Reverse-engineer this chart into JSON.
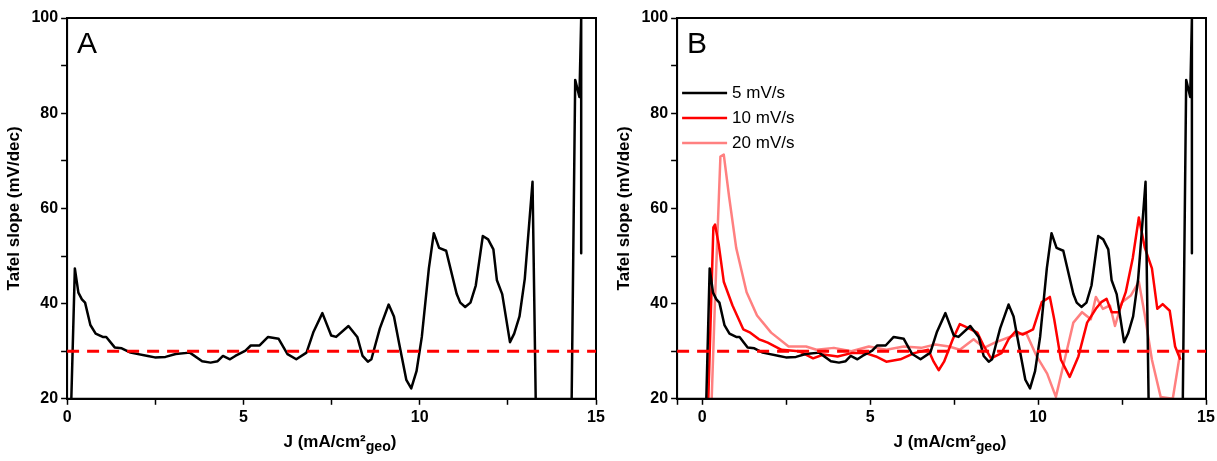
{
  "chart_data": [
    {
      "type": "line",
      "xlabel": "J (mA/cm²$_{geo}$)",
      "ylabel": "Tafel slope (mV/dec)",
      "annotations": [
        "A"
      ],
      "xlim": [
        0,
        15
      ],
      "ylim": [
        20,
        100
      ],
      "xticks": [
        0,
        {
          "value": 2.5,
          "label": null
        },
        5,
        {
          "value": 7.5,
          "label": null
        },
        10,
        {
          "value": 12.5,
          "label": null
        },
        15
      ],
      "yticks": [
        20,
        {
          "value": 30,
          "label": null
        },
        40,
        {
          "value": 50,
          "label": null
        },
        60,
        {
          "value": 70,
          "label": null
        },
        80,
        {
          "value": 90,
          "label": null
        },
        100
      ],
      "grid": false,
      "legend": false,
      "marker": "none",
      "line_style": "solid",
      "ref_lines": [
        {
          "axis": "y",
          "value": 30,
          "color": "#ff0000",
          "line_style": "dashed"
        }
      ],
      "series": [
        {
          "color": "#000000",
          "x": [
            0.12,
            0.22,
            0.32,
            0.42,
            0.51,
            0.66,
            0.81,
            1.01,
            1.11,
            1.35,
            1.55,
            1.8,
            2.29,
            2.49,
            2.79,
            3.08,
            3.48,
            3.83,
            4.07,
            4.27,
            4.42,
            4.62,
            4.77,
            5.06,
            5.21,
            5.46,
            5.7,
            6.0,
            6.25,
            6.5,
            6.79,
            6.99,
            7.24,
            7.49,
            7.63,
            7.98,
            8.23,
            8.38,
            8.53,
            8.63,
            8.87,
            9.12,
            9.27,
            9.42,
            9.62,
            9.76,
            9.91,
            10.06,
            10.26,
            10.4,
            10.55,
            10.75,
            11.05,
            11.15,
            11.29,
            11.44,
            11.59,
            11.79,
            11.94,
            12.09,
            12.19,
            12.34,
            12.56,
            12.68,
            12.83,
            12.98,
            13.2,
            13.29,
            null,
            14.31,
            14.41,
            14.53,
            14.58,
            14.58
          ],
          "values": [
            20,
            47.4,
            42.3,
            40.9,
            40.2,
            35.5,
            33.7,
            33,
            33,
            30.8,
            30.6,
            29.7,
            29,
            28.7,
            28.8,
            29.4,
            29.7,
            27.9,
            27.6,
            27.9,
            29,
            28.3,
            29,
            30.1,
            31.2,
            31.2,
            33,
            32.6,
            29.4,
            28.3,
            29.7,
            34.1,
            38,
            33.3,
            33,
            35.3,
            33,
            29,
            27.8,
            28.3,
            34.8,
            39.8,
            37.3,
            31.5,
            24,
            22.2,
            25.8,
            33,
            47.4,
            54.8,
            51.7,
            51.1,
            42,
            40.2,
            39.3,
            40.2,
            43.8,
            54.2,
            53.5,
            51.4,
            44.9,
            42,
            31.9,
            33.7,
            37.3,
            45.2,
            65.6,
            20,
            null,
            20,
            87,
            83.4,
            100,
            50.6
          ]
        }
      ]
    },
    {
      "type": "line",
      "xlabel": "J (mA/cm²$_{geo}$)",
      "ylabel": "Tafel slope (mV/dec)",
      "annotations": [
        "B"
      ],
      "xlim": [
        -0.75,
        15
      ],
      "ylim": [
        20,
        100
      ],
      "xticks": [
        {
          "value": -0.75,
          "label": null
        },
        0,
        {
          "value": 2.5,
          "label": null
        },
        5,
        {
          "value": 7.5,
          "label": null
        },
        10,
        {
          "value": 12.5,
          "label": null
        },
        15
      ],
      "yticks": [
        20,
        {
          "value": 30,
          "label": null
        },
        40,
        {
          "value": 50,
          "label": null
        },
        60,
        {
          "value": 70,
          "label": null
        },
        80,
        {
          "value": 90,
          "label": null
        },
        100
      ],
      "grid": false,
      "legend": "top left",
      "marker": "none",
      "line_style": "solid",
      "ref_lines": [
        {
          "axis": "y",
          "value": 30,
          "color": "#ff0000",
          "line_style": "dashed"
        }
      ],
      "series": [
        {
          "name": "5 mV/s",
          "color": "#000000",
          "x": [
            0.12,
            0.22,
            0.32,
            0.42,
            0.51,
            0.66,
            0.81,
            1.01,
            1.11,
            1.35,
            1.55,
            1.8,
            2.29,
            2.49,
            2.79,
            3.08,
            3.48,
            3.83,
            4.07,
            4.27,
            4.42,
            4.62,
            4.77,
            5.06,
            5.21,
            5.46,
            5.7,
            6.0,
            6.25,
            6.5,
            6.79,
            6.99,
            7.24,
            7.49,
            7.63,
            7.98,
            8.23,
            8.38,
            8.53,
            8.63,
            8.87,
            9.12,
            9.27,
            9.42,
            9.62,
            9.76,
            9.91,
            10.06,
            10.26,
            10.4,
            10.55,
            10.75,
            11.05,
            11.15,
            11.29,
            11.44,
            11.59,
            11.79,
            11.94,
            12.09,
            12.19,
            12.34,
            12.56,
            12.68,
            12.83,
            12.98,
            13.2,
            13.29,
            null,
            14.31,
            14.41,
            14.53,
            14.58,
            14.58
          ],
          "values": [
            20,
            47.4,
            42.3,
            40.9,
            40.2,
            35.5,
            33.7,
            33,
            33,
            30.8,
            30.6,
            29.7,
            29,
            28.7,
            28.8,
            29.4,
            29.7,
            27.9,
            27.6,
            27.9,
            29,
            28.3,
            29,
            30.1,
            31.2,
            31.2,
            33,
            32.6,
            29.4,
            28.3,
            29.7,
            34.1,
            38,
            33.3,
            33,
            35.3,
            33,
            29,
            27.8,
            28.3,
            34.8,
            39.8,
            37.3,
            31.5,
            24,
            22.2,
            25.8,
            33,
            47.4,
            54.8,
            51.7,
            51.1,
            42,
            40.2,
            39.3,
            40.2,
            43.8,
            54.2,
            53.5,
            51.4,
            44.9,
            42,
            31.9,
            33.7,
            37.3,
            45.2,
            65.6,
            20,
            null,
            20,
            87,
            83.4,
            100,
            50.6
          ]
        },
        {
          "name": "10 mV/s",
          "color": "#ff0000",
          "x": [
            0.18,
            0.33,
            0.38,
            0.49,
            0.64,
            0.9,
            1.22,
            1.43,
            1.69,
            1.95,
            2.36,
            2.88,
            3.3,
            3.61,
            4.03,
            4.44,
            4.86,
            5.17,
            5.48,
            5.9,
            6.31,
            6.73,
            6.89,
            7.04,
            7.2,
            7.46,
            7.67,
            7.88,
            8.19,
            8.39,
            8.6,
            8.91,
            9.12,
            9.33,
            9.54,
            9.85,
            10.11,
            10.35,
            10.48,
            10.68,
            10.94,
            11.2,
            11.46,
            11.72,
            11.88,
            12.04,
            12.19,
            12.4,
            12.61,
            12.82,
            13.0,
            13.18,
            13.39,
            13.55,
            13.71,
            13.92,
            14.08,
            14.24
          ],
          "values": [
            20,
            56,
            56.6,
            52.4,
            44.6,
            39.6,
            34.6,
            33.9,
            32.5,
            31.8,
            30.3,
            30,
            28.5,
            29.3,
            28.9,
            29.6,
            29.6,
            28.9,
            27.8,
            28.3,
            29.6,
            30.3,
            27.8,
            26,
            27.8,
            32.5,
            35.7,
            35,
            33.9,
            31,
            28.5,
            29.6,
            32.5,
            34.2,
            33.5,
            34.6,
            40.3,
            41.4,
            36.7,
            28.2,
            24.6,
            28.9,
            36,
            38.9,
            40.3,
            41,
            38.2,
            38.2,
            42.4,
            49.6,
            58.1,
            51.7,
            47.4,
            38.9,
            39.9,
            38.5,
            31,
            28.2
          ]
        },
        {
          "name": "20 mV/s",
          "color": "#ff8080",
          "x": [
            0.28,
            0.38,
            0.54,
            0.64,
            0.8,
            1.01,
            1.32,
            1.63,
            2.05,
            2.57,
            3.09,
            3.4,
            3.92,
            4.44,
            4.96,
            5.48,
            6.0,
            6.52,
            6.94,
            7.35,
            7.67,
            8.08,
            8.39,
            8.71,
            9.23,
            9.64,
            9.96,
            10.27,
            10.53,
            10.79,
            11.05,
            11.31,
            11.57,
            11.72,
            11.93,
            12.14,
            12.29,
            12.5,
            12.76,
            13.0,
            13.18,
            13.39,
            13.65,
            14.01,
            14.23
          ],
          "values": [
            20,
            41,
            70.9,
            71.3,
            62.4,
            51.7,
            42.4,
            37.5,
            33.9,
            31,
            31,
            30.3,
            30.7,
            30,
            31,
            30.3,
            31,
            30.7,
            31.4,
            31,
            30.3,
            32.5,
            30.7,
            31.8,
            33.2,
            33.9,
            28.9,
            25.3,
            20.4,
            28.2,
            36,
            38.2,
            36.7,
            41.4,
            38.9,
            39.6,
            35.3,
            40.3,
            41.7,
            44.6,
            37.5,
            28.2,
            20.4,
            20,
            29.6
          ]
        }
      ]
    }
  ]
}
